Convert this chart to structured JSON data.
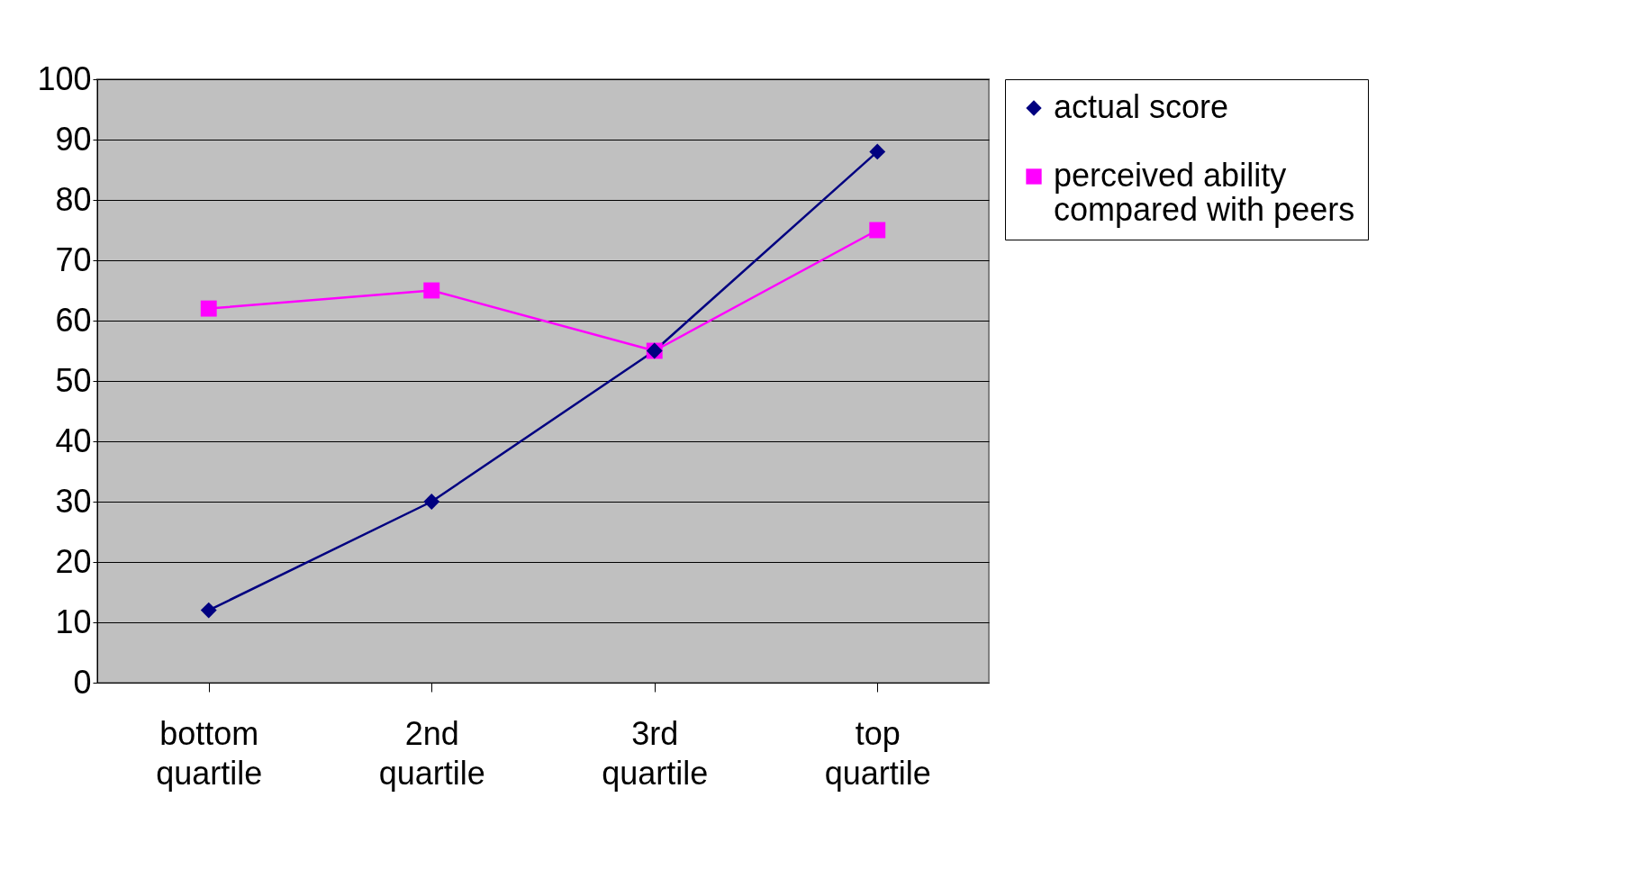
{
  "chart_data": {
    "type": "line",
    "categories": [
      "bottom quartile",
      "2nd quartile",
      "3rd quartile",
      "top quartile"
    ],
    "series": [
      {
        "name": "actual score",
        "color": "#000080",
        "marker": "diamond",
        "values": [
          12,
          30,
          55,
          88
        ]
      },
      {
        "name": "perceived ability compared with peers",
        "color": "#ff00ff",
        "marker": "square",
        "values": [
          62,
          65,
          55,
          75
        ]
      }
    ],
    "ylim": [
      0,
      100
    ],
    "yticks": [
      0,
      10,
      20,
      30,
      40,
      50,
      60,
      70,
      80,
      90,
      100
    ],
    "grid": "y",
    "legend": "right",
    "line_style": "solid"
  }
}
